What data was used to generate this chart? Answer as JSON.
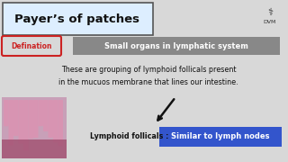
{
  "bg_color": "#d8d8d8",
  "title_text": "Payer’s of patches",
  "title_box_color": "#ddeeff",
  "title_box_edge": "#555555",
  "defination_text": "Defination",
  "defination_box_edge": "#cc2222",
  "defination_text_color": "#cc2222",
  "grey_box_text": "Small organs in lymphatic system",
  "grey_box_color": "#888888",
  "grey_box_text_color": "#ffffff",
  "body_line1": "These are grouping of lymphoid follicals present",
  "body_line2": "in the mucuos membrane that lines our intestine.",
  "label_text": "Lymphoid follicals : ",
  "blue_box_text": "Similar to lymph nodes",
  "blue_box_color": "#3355cc",
  "blue_box_text_color": "#ffffff",
  "dvm_text": "DVM",
  "hist_color": "#c8a0b8"
}
